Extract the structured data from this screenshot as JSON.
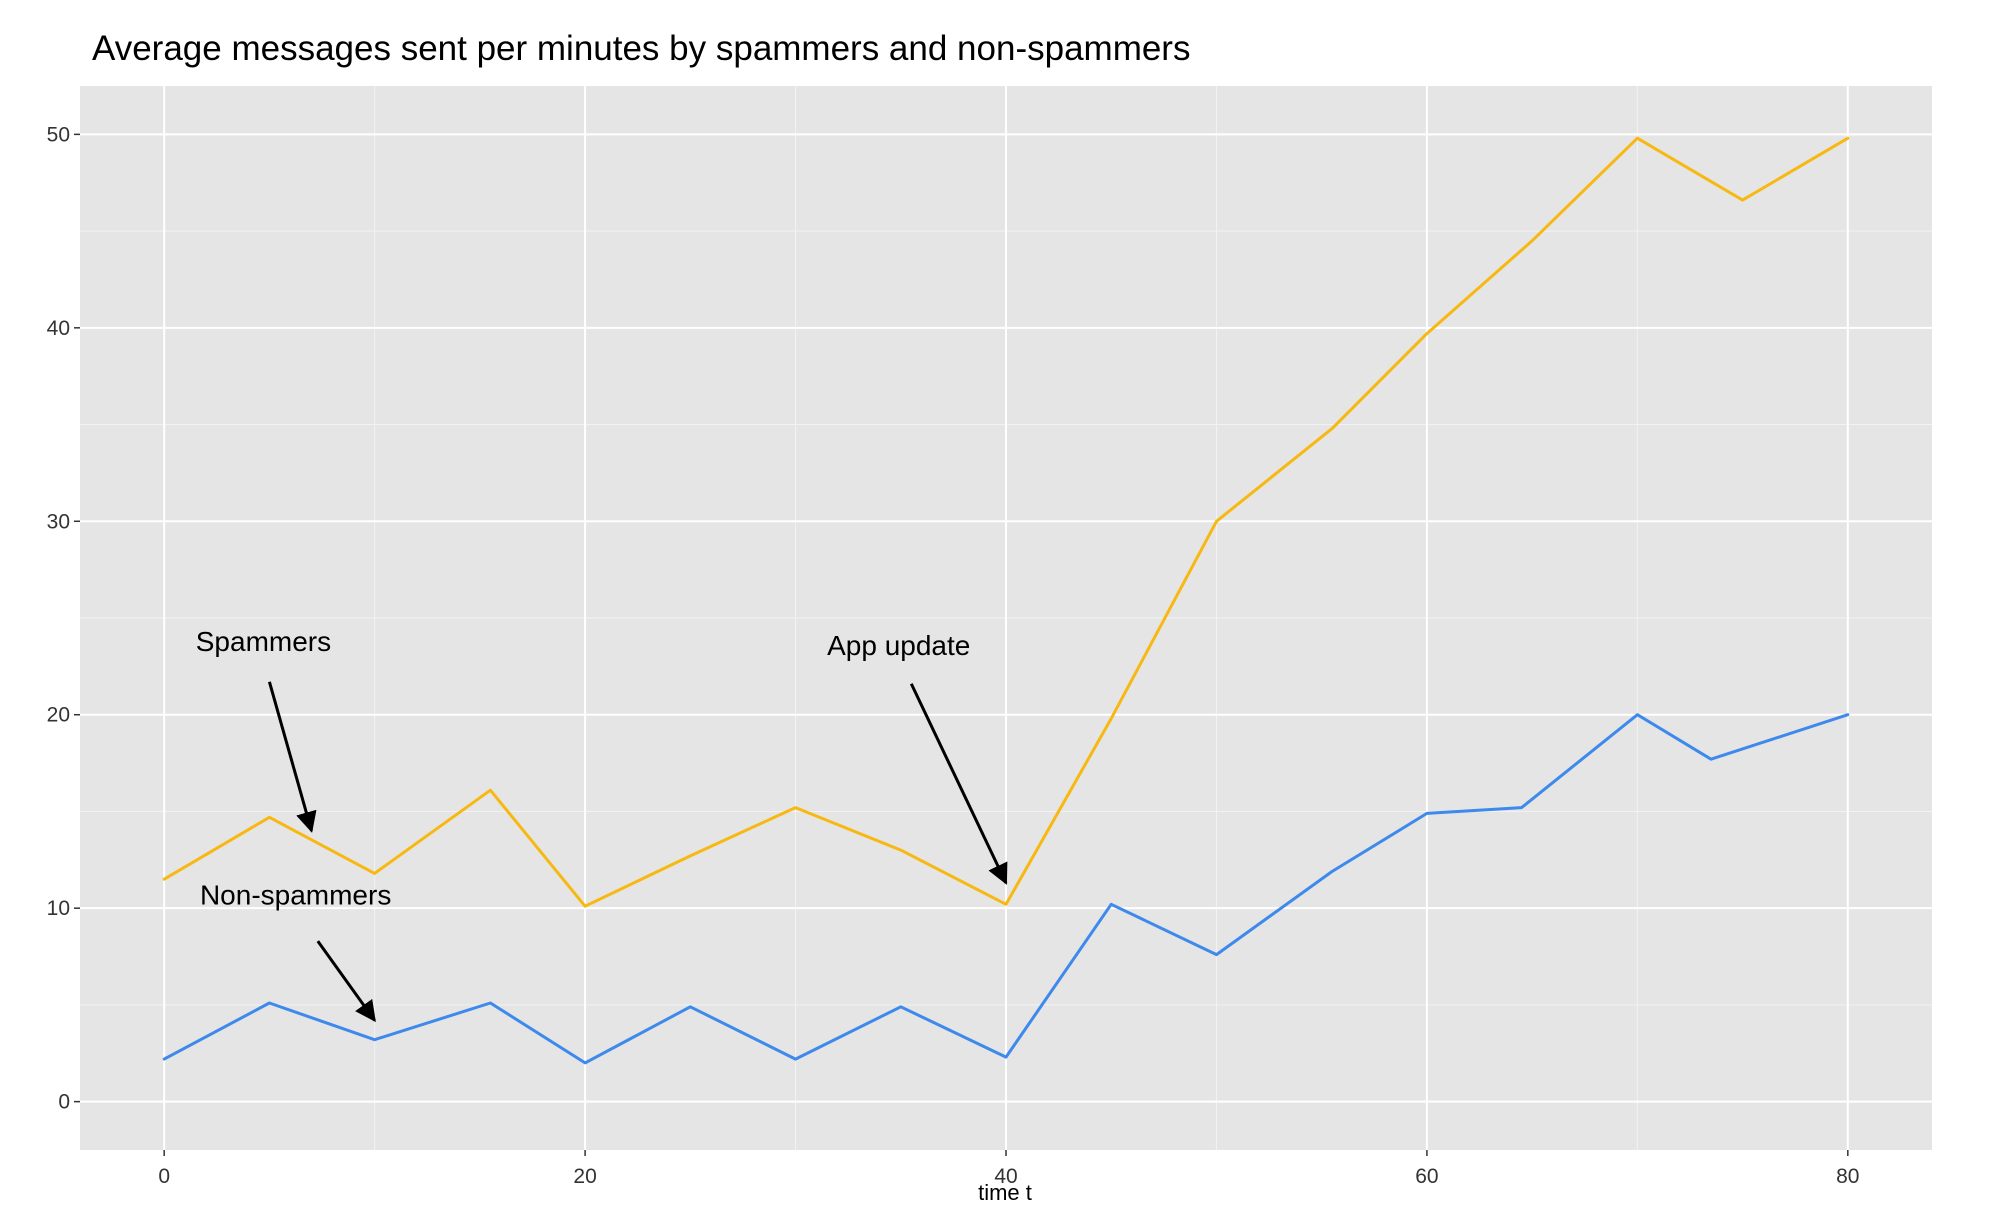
{
  "chart_data": {
    "type": "line",
    "title": "Average messages sent per minutes by spammers and non-spammers",
    "xlabel": "time t",
    "ylabel": "",
    "xlim": [
      -4,
      84
    ],
    "ylim": [
      -2.5,
      52.5
    ],
    "x_ticks": [
      0,
      20,
      40,
      60,
      80
    ],
    "y_ticks": [
      0,
      10,
      20,
      30,
      40,
      50
    ],
    "grid": true,
    "legend": "none",
    "series": [
      {
        "color": "#f8b812",
        "points": [
          [
            0,
            11.5
          ],
          [
            5,
            14.7
          ],
          [
            10,
            11.8
          ],
          [
            15.5,
            16.1
          ],
          [
            20,
            10.1
          ],
          [
            25,
            12.7
          ],
          [
            30,
            15.2
          ],
          [
            35,
            13.0
          ],
          [
            40,
            10.2
          ],
          [
            45,
            19.8
          ],
          [
            50,
            30.0
          ],
          [
            55.5,
            34.8
          ],
          [
            60,
            39.7
          ],
          [
            65,
            44.5
          ],
          [
            70,
            49.8
          ],
          [
            75,
            46.6
          ],
          [
            80,
            49.8
          ]
        ]
      },
      {
        "color": "#3e89ec",
        "points": [
          [
            0,
            2.2
          ],
          [
            5,
            5.1
          ],
          [
            10,
            3.2
          ],
          [
            15.5,
            5.1
          ],
          [
            20,
            2.0
          ],
          [
            25,
            4.9
          ],
          [
            30,
            2.2
          ],
          [
            35,
            4.9
          ],
          [
            40,
            2.3
          ],
          [
            45,
            10.2
          ],
          [
            50,
            7.6
          ],
          [
            55.5,
            11.9
          ],
          [
            60,
            14.9
          ],
          [
            64.5,
            15.2
          ],
          [
            70,
            20.0
          ],
          [
            73.5,
            17.7
          ],
          [
            80,
            20.0
          ]
        ]
      }
    ],
    "annotations": [
      {
        "text": "Spammers",
        "text_pos": [
          1.5,
          23.3
        ],
        "arrow_from": [
          5,
          21.7
        ],
        "arrow_to": [
          7,
          14.0
        ]
      },
      {
        "text": "App update",
        "text_pos": [
          31.5,
          23.1
        ],
        "arrow_from": [
          35.5,
          21.6
        ],
        "arrow_to": [
          40,
          11.3
        ]
      },
      {
        "text": "Non-spammers",
        "text_pos": [
          1.7,
          10.2
        ],
        "arrow_from": [
          7.3,
          8.3
        ],
        "arrow_to": [
          10,
          4.2
        ]
      }
    ]
  }
}
